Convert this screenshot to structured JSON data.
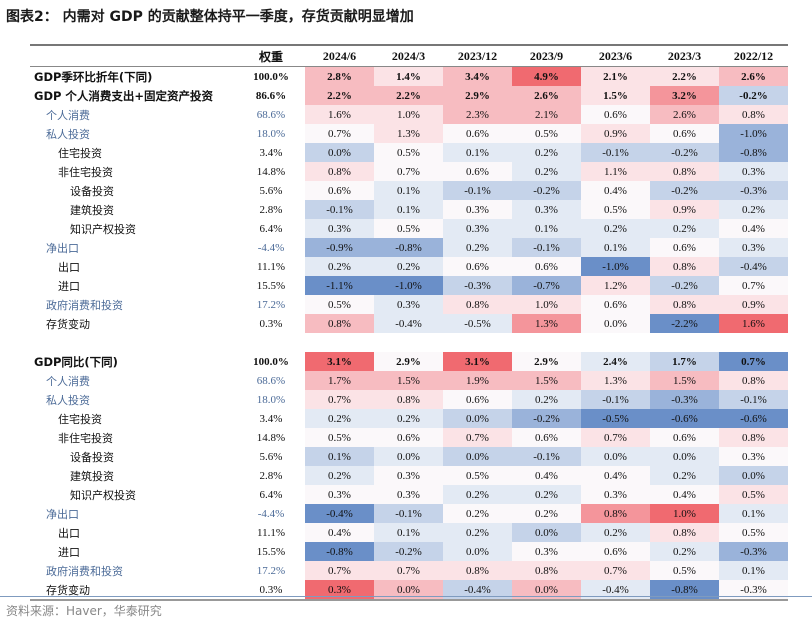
{
  "title": "图表2： 内需对 GDP 的贡献整体持平一季度，存货贡献明显增加",
  "source": "资料来源：Haver，华泰研究",
  "colors": {
    "neutral": "#fbf8fa",
    "red": [
      "#fbe3e6",
      "#f7bcc1",
      "#f4959b",
      "#f06a70"
    ],
    "blue": [
      "#e3eaf4",
      "#c5d3e9",
      "#9ab3da",
      "#6a8fc8"
    ]
  },
  "chart_data": {
    "type": "heatmap",
    "title": "图表2： 内需对 GDP 的贡献整体持平一季度，存货贡献明显增加",
    "header": {
      "weight": "权重",
      "columns": [
        "2024/6",
        "2024/3",
        "2023/12",
        "2023/9",
        "2023/6",
        "2023/3",
        "2022/12"
      ]
    },
    "sections": [
      {
        "rows": [
          {
            "label": "GDP季环比折年(下同)",
            "indent": 0,
            "style": "bold",
            "weight": "100.0%",
            "values": [
              "2.8%",
              "1.4%",
              "3.4%",
              "4.9%",
              "2.1%",
              "2.2%",
              "2.6%"
            ],
            "heat": [
              2,
              1,
              2,
              4,
              1,
              1,
              2
            ]
          },
          {
            "label": "GDP 个人消费支出+固定资产投资",
            "indent": 0,
            "style": "bold",
            "weight": "86.6%",
            "values": [
              "2.2%",
              "2.2%",
              "2.9%",
              "2.6%",
              "1.5%",
              "3.2%",
              "-0.2%"
            ],
            "heat": [
              2,
              2,
              2,
              2,
              1,
              3,
              -2
            ]
          },
          {
            "label": "个人消费",
            "indent": 1,
            "style": "hl",
            "weight": "68.6%",
            "values": [
              "1.6%",
              "1.0%",
              "2.3%",
              "2.1%",
              "0.6%",
              "2.6%",
              "0.8%"
            ],
            "heat": [
              1,
              1,
              2,
              2,
              0,
              2,
              1
            ]
          },
          {
            "label": "私人投资",
            "indent": 1,
            "style": "hl",
            "weight": "18.0%",
            "values": [
              "0.7%",
              "1.3%",
              "0.6%",
              "0.5%",
              "0.9%",
              "0.6%",
              "-1.0%"
            ],
            "heat": [
              0,
              1,
              0,
              0,
              1,
              0,
              -3
            ]
          },
          {
            "label": "住宅投资",
            "indent": 2,
            "style": "",
            "weight": "3.4%",
            "values": [
              "0.0%",
              "0.5%",
              "0.1%",
              "0.2%",
              "-0.1%",
              "-0.2%",
              "-0.8%"
            ],
            "heat": [
              -2,
              0,
              -1,
              -1,
              -2,
              -2,
              -3
            ]
          },
          {
            "label": "非住宅投资",
            "indent": 2,
            "style": "",
            "weight": "14.8%",
            "values": [
              "0.8%",
              "0.7%",
              "0.6%",
              "0.2%",
              "1.1%",
              "0.8%",
              "0.3%"
            ],
            "heat": [
              1,
              0,
              0,
              -1,
              1,
              1,
              -1
            ]
          },
          {
            "label": "设备投资",
            "indent": 3,
            "style": "",
            "weight": "5.6%",
            "values": [
              "0.6%",
              "0.1%",
              "-0.1%",
              "-0.2%",
              "0.4%",
              "-0.2%",
              "-0.3%"
            ],
            "heat": [
              0,
              -1,
              -2,
              -2,
              0,
              -2,
              -2
            ]
          },
          {
            "label": "建筑投资",
            "indent": 3,
            "style": "",
            "weight": "2.8%",
            "values": [
              "-0.1%",
              "0.1%",
              "0.3%",
              "0.3%",
              "0.5%",
              "0.9%",
              "0.2%"
            ],
            "heat": [
              -2,
              -1,
              0,
              -1,
              0,
              1,
              -1
            ]
          },
          {
            "label": "知识产权投资",
            "indent": 3,
            "style": "",
            "weight": "6.4%",
            "values": [
              "0.3%",
              "0.5%",
              "0.3%",
              "0.1%",
              "0.2%",
              "0.2%",
              "0.4%"
            ],
            "heat": [
              -1,
              0,
              -1,
              -1,
              -1,
              -1,
              0
            ]
          },
          {
            "label": "净出口",
            "indent": 1,
            "style": "hl",
            "weight": "-4.4%",
            "values": [
              "-0.9%",
              "-0.8%",
              "0.2%",
              "-0.1%",
              "0.1%",
              "0.6%",
              "0.3%"
            ],
            "heat": [
              -3,
              -3,
              -1,
              -2,
              -1,
              0,
              -1
            ]
          },
          {
            "label": "出口",
            "indent": 2,
            "style": "",
            "weight": "11.1%",
            "values": [
              "0.2%",
              "0.2%",
              "0.6%",
              "0.6%",
              "-1.0%",
              "0.8%",
              "-0.4%"
            ],
            "heat": [
              -1,
              -1,
              0,
              0,
              -4,
              1,
              -2
            ]
          },
          {
            "label": "进口",
            "indent": 2,
            "style": "",
            "weight": "15.5%",
            "values": [
              "-1.1%",
              "-1.0%",
              "-0.3%",
              "-0.7%",
              "1.2%",
              "-0.2%",
              "0.7%"
            ],
            "heat": [
              -4,
              -4,
              -2,
              -3,
              1,
              -2,
              0
            ]
          },
          {
            "label": "政府消费和投资",
            "indent": 1,
            "style": "hl",
            "weight": "17.2%",
            "values": [
              "0.5%",
              "0.3%",
              "0.8%",
              "1.0%",
              "0.6%",
              "0.8%",
              "0.9%"
            ],
            "heat": [
              0,
              -1,
              1,
              1,
              0,
              1,
              1
            ]
          },
          {
            "label": "存货变动",
            "indent": 1,
            "style": "",
            "weight": "0.3%",
            "values": [
              "0.8%",
              "-0.4%",
              "-0.5%",
              "1.3%",
              "0.0%",
              "-2.2%",
              "1.6%"
            ],
            "heat": [
              2,
              -1,
              -1,
              3,
              0,
              -4,
              4
            ]
          }
        ]
      },
      {
        "rows": [
          {
            "label": "GDP同比(下同)",
            "indent": 0,
            "style": "bold",
            "weight": "100.0%",
            "values": [
              "3.1%",
              "2.9%",
              "3.1%",
              "2.9%",
              "2.4%",
              "1.7%",
              "0.7%"
            ],
            "heat": [
              4,
              0,
              4,
              0,
              -1,
              -2,
              -4
            ]
          },
          {
            "label": "个人消费",
            "indent": 1,
            "style": "hl",
            "weight": "68.6%",
            "values": [
              "1.7%",
              "1.5%",
              "1.9%",
              "1.5%",
              "1.3%",
              "1.5%",
              "0.8%"
            ],
            "heat": [
              2,
              2,
              2,
              2,
              1,
              2,
              1
            ]
          },
          {
            "label": "私人投资",
            "indent": 1,
            "style": "hl",
            "weight": "18.0%",
            "values": [
              "0.7%",
              "0.8%",
              "0.6%",
              "0.2%",
              "-0.1%",
              "-0.3%",
              "-0.1%"
            ],
            "heat": [
              1,
              1,
              0,
              -1,
              -2,
              -3,
              -2
            ]
          },
          {
            "label": "住宅投资",
            "indent": 2,
            "style": "",
            "weight": "3.4%",
            "values": [
              "0.2%",
              "0.2%",
              "0.0%",
              "-0.2%",
              "-0.5%",
              "-0.6%",
              "-0.6%"
            ],
            "heat": [
              -1,
              -1,
              -2,
              -3,
              -4,
              -4,
              -4
            ]
          },
          {
            "label": "非住宅投资",
            "indent": 2,
            "style": "",
            "weight": "14.8%",
            "values": [
              "0.5%",
              "0.6%",
              "0.7%",
              "0.6%",
              "0.7%",
              "0.6%",
              "0.8%"
            ],
            "heat": [
              0,
              0,
              1,
              0,
              1,
              0,
              1
            ]
          },
          {
            "label": "设备投资",
            "indent": 3,
            "style": "",
            "weight": "5.6%",
            "values": [
              "0.1%",
              "0.0%",
              "0.0%",
              "-0.1%",
              "0.0%",
              "0.0%",
              "0.3%"
            ],
            "heat": [
              -2,
              -1,
              -2,
              -2,
              -1,
              -1,
              0
            ]
          },
          {
            "label": "建筑投资",
            "indent": 3,
            "style": "",
            "weight": "2.8%",
            "values": [
              "0.2%",
              "0.3%",
              "0.5%",
              "0.4%",
              "0.4%",
              "0.2%",
              "0.0%"
            ],
            "heat": [
              -1,
              0,
              0,
              0,
              0,
              -1,
              -2
            ]
          },
          {
            "label": "知识产权投资",
            "indent": 3,
            "style": "",
            "weight": "6.4%",
            "values": [
              "0.3%",
              "0.3%",
              "0.2%",
              "0.2%",
              "0.3%",
              "0.4%",
              "0.5%"
            ],
            "heat": [
              0,
              0,
              -1,
              -1,
              0,
              0,
              1
            ]
          },
          {
            "label": "净出口",
            "indent": 1,
            "style": "hl",
            "weight": "-4.4%",
            "values": [
              "-0.4%",
              "-0.1%",
              "0.2%",
              "0.2%",
              "0.8%",
              "1.0%",
              "0.1%"
            ],
            "heat": [
              -4,
              -2,
              0,
              0,
              3,
              4,
              -1
            ]
          },
          {
            "label": "出口",
            "indent": 2,
            "style": "",
            "weight": "11.1%",
            "values": [
              "0.4%",
              "0.1%",
              "0.2%",
              "0.0%",
              "0.2%",
              "0.8%",
              "0.5%"
            ],
            "heat": [
              0,
              -1,
              -1,
              -2,
              -1,
              1,
              0
            ]
          },
          {
            "label": "进口",
            "indent": 2,
            "style": "",
            "weight": "15.5%",
            "values": [
              "-0.8%",
              "-0.2%",
              "0.0%",
              "0.3%",
              "0.6%",
              "0.2%",
              "-0.3%"
            ],
            "heat": [
              -4,
              -2,
              -1,
              0,
              0,
              -1,
              -3
            ]
          },
          {
            "label": "政府消费和投资",
            "indent": 1,
            "style": "hl",
            "weight": "17.2%",
            "values": [
              "0.7%",
              "0.7%",
              "0.8%",
              "0.8%",
              "0.7%",
              "0.5%",
              "0.1%"
            ],
            "heat": [
              1,
              1,
              1,
              1,
              1,
              0,
              -1
            ]
          },
          {
            "label": "存货变动",
            "indent": 1,
            "style": "",
            "weight": "0.3%",
            "values": [
              "0.3%",
              "0.0%",
              "-0.4%",
              "0.0%",
              "-0.4%",
              "-0.8%",
              "-0.3%"
            ],
            "heat": [
              4,
              2,
              -2,
              2,
              -1,
              -4,
              0
            ]
          }
        ]
      }
    ]
  }
}
